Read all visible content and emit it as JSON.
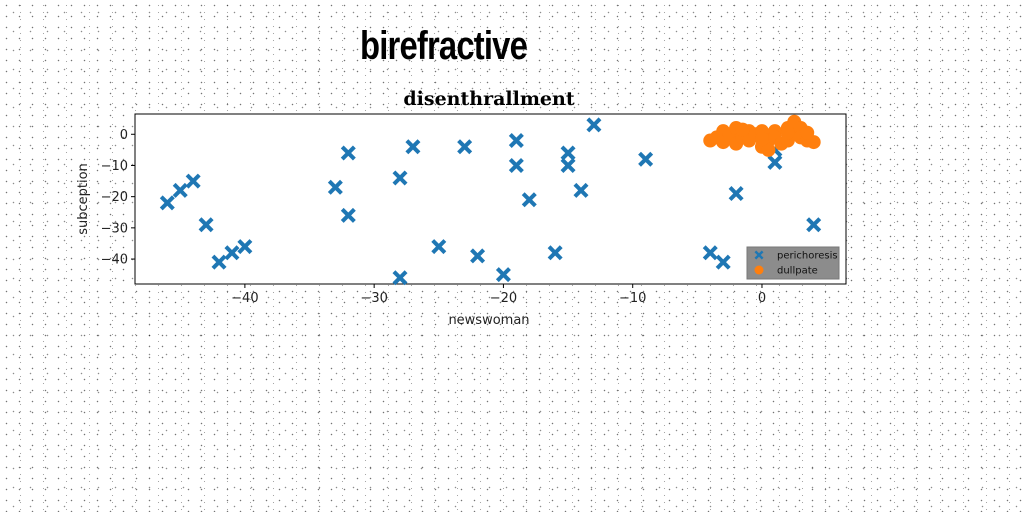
{
  "figure": {
    "suptitle": "birefractive"
  },
  "chart_data": {
    "type": "scatter",
    "title": "disenthrallment",
    "xlabel": "newswoman",
    "ylabel": "subception",
    "xlim": [
      -48.5,
      6.5
    ],
    "ylim": [
      -48,
      6.5
    ],
    "xticks": [
      -40,
      -30,
      -20,
      -10,
      0
    ],
    "yticks": [
      0,
      -10,
      -20,
      -30,
      -40
    ],
    "grid": false,
    "legend_position": "lower-right",
    "series": [
      {
        "name": "perichoresis",
        "marker": "X",
        "color": "#1f77b4",
        "points": [
          [
            -46,
            -22
          ],
          [
            -45,
            -18
          ],
          [
            -44,
            -15
          ],
          [
            -43,
            -29
          ],
          [
            -42,
            -41
          ],
          [
            -41,
            -38
          ],
          [
            -40,
            -36
          ],
          [
            -33,
            -17
          ],
          [
            -32,
            -6
          ],
          [
            -32,
            -26
          ],
          [
            -28,
            -14
          ],
          [
            -28,
            -46
          ],
          [
            -27,
            -4
          ],
          [
            -25,
            -36
          ],
          [
            -23,
            -4
          ],
          [
            -22,
            -39
          ],
          [
            -20,
            -45
          ],
          [
            -19,
            -2
          ],
          [
            -19,
            -10
          ],
          [
            -18,
            -21
          ],
          [
            -16,
            -38
          ],
          [
            -15,
            -6
          ],
          [
            -15,
            -10
          ],
          [
            -14,
            -18
          ],
          [
            -13,
            3
          ],
          [
            -9,
            -8
          ],
          [
            -4,
            -38
          ],
          [
            -3,
            -41
          ],
          [
            -2,
            -19
          ],
          [
            1,
            -5
          ],
          [
            1,
            -9
          ],
          [
            4,
            -29
          ]
        ]
      },
      {
        "name": "dullpate",
        "marker": "o",
        "color": "#ff7f0e",
        "points": [
          [
            -4,
            -2
          ],
          [
            -3.5,
            -1
          ],
          [
            -3,
            1
          ],
          [
            -3,
            -2.5
          ],
          [
            -2.5,
            0
          ],
          [
            -2,
            2
          ],
          [
            -2,
            -3
          ],
          [
            -1.5,
            -1
          ],
          [
            -1,
            1
          ],
          [
            -1,
            -2
          ],
          [
            -0.5,
            0
          ],
          [
            0,
            -4
          ],
          [
            0,
            1
          ],
          [
            0.5,
            -2
          ],
          [
            0.5,
            -5
          ],
          [
            1,
            1
          ],
          [
            1,
            -1
          ],
          [
            1.5,
            -3
          ],
          [
            2,
            2
          ],
          [
            2,
            -2
          ],
          [
            2.5,
            4
          ],
          [
            2.5,
            0
          ],
          [
            3,
            2
          ],
          [
            3,
            -1
          ],
          [
            3.5,
            -2
          ],
          [
            4,
            -2.5
          ],
          [
            3.5,
            0.5
          ],
          [
            0,
            -1.5
          ],
          [
            -1.5,
            1.5
          ],
          [
            2,
            0.5
          ]
        ]
      }
    ]
  }
}
